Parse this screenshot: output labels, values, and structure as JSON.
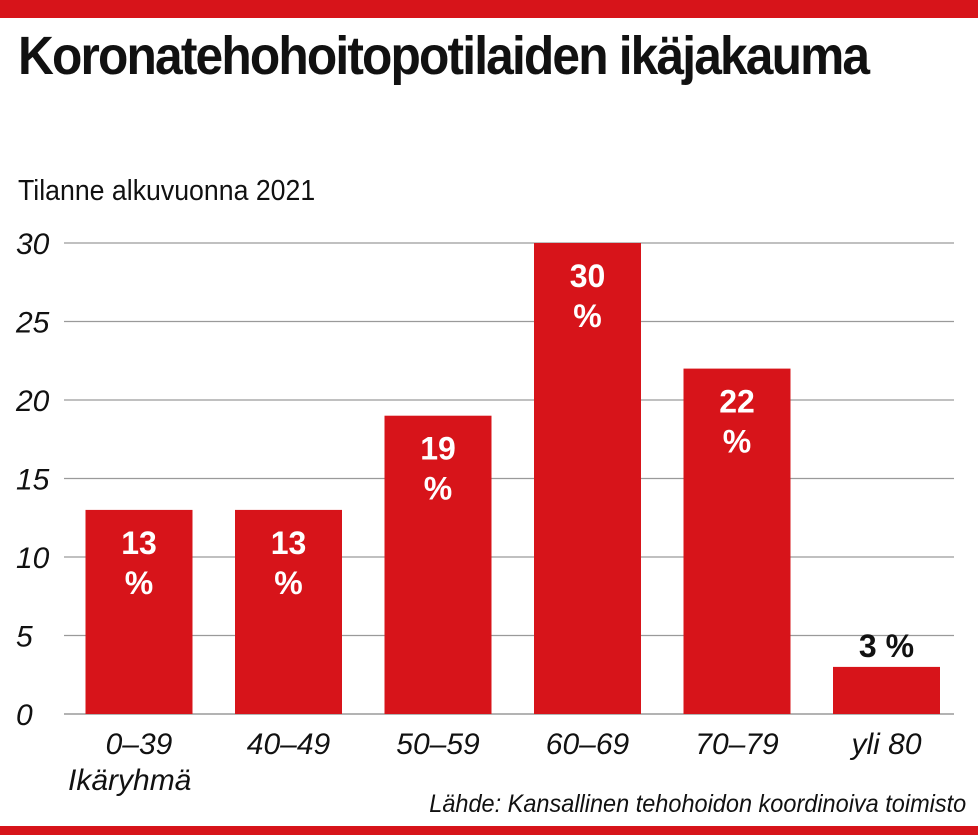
{
  "colors": {
    "accent": "#d7141a",
    "text": "#111111",
    "grid": "#9a9a9a"
  },
  "title": "Koronatehohoitopotilaiden ikäjakauma",
  "subtitle": "Tilanne alkuvuonna 2021",
  "source": "Lähde: Kansallinen tehohoidon koordinoiva toimisto",
  "chart_data": {
    "type": "bar",
    "categories": [
      "0–39",
      "40–49",
      "50–59",
      "60–69",
      "70–79",
      "yli 80"
    ],
    "values": [
      13,
      13,
      19,
      30,
      22,
      3
    ],
    "data_labels": [
      "13 %",
      "13 %",
      "19 %",
      "30 %",
      "22 %",
      "3 %"
    ],
    "title": "Koronatehohoitopotilaiden ikäjakauma",
    "subtitle": "Tilanne alkuvuonna 2021",
    "xlabel": "Ikäryhmä",
    "ylabel": "",
    "ylim": [
      0,
      30
    ],
    "yticks": [
      0,
      5,
      10,
      15,
      20,
      25,
      30
    ],
    "grid": true,
    "legend": "none"
  }
}
